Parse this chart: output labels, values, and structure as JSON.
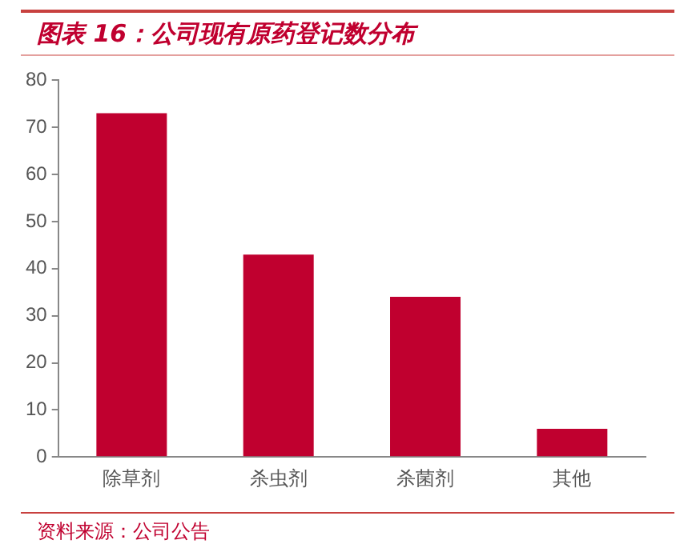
{
  "chart_data": {
    "type": "bar",
    "title": "图表 16：公司现有原药登记数分布",
    "categories": [
      "除草剂",
      "杀虫剂",
      "杀菌剂",
      "其他"
    ],
    "values": [
      73,
      43,
      34,
      6
    ],
    "color": "#c0002f",
    "ylim": [
      0,
      80
    ],
    "yticks": [
      0,
      10,
      20,
      30,
      40,
      50,
      60,
      70,
      80
    ],
    "grid": false,
    "annotations": [
      "资料来源：公司公告"
    ]
  }
}
